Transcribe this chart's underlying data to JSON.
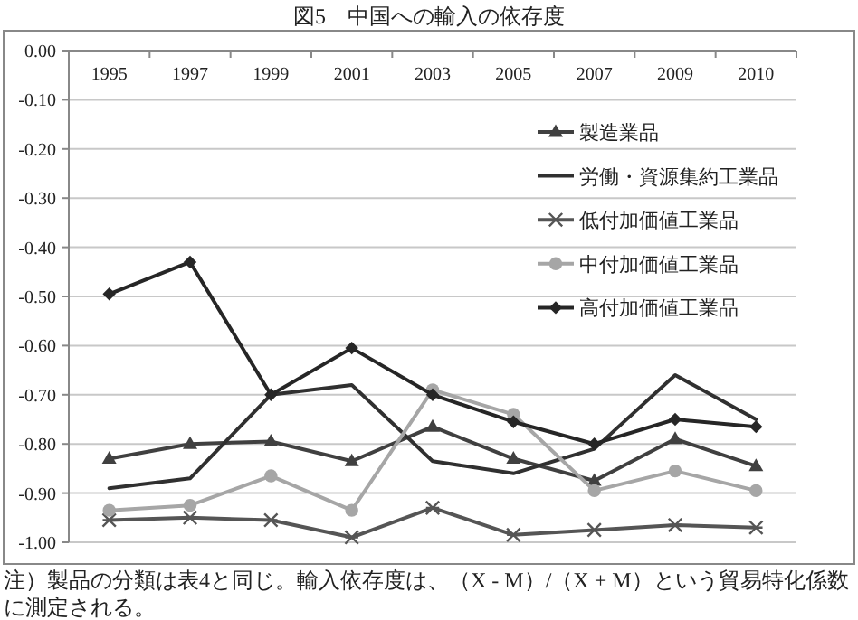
{
  "chart_data": {
    "type": "line",
    "title": "図5　中国への輸入の依存度",
    "categories": [
      "1995",
      "1997",
      "1999",
      "2001",
      "2003",
      "2005",
      "2007",
      "2009",
      "2010"
    ],
    "series": [
      {
        "name": "製造業品",
        "color": "#404040",
        "marker": "triangle",
        "values": [
          -0.83,
          -0.8,
          -0.795,
          -0.835,
          -0.765,
          -0.83,
          -0.875,
          -0.79,
          -0.845
        ]
      },
      {
        "name": "労働・資源集約工業品",
        "color": "#303030",
        "marker": "none",
        "values": [
          -0.89,
          -0.87,
          -0.7,
          -0.68,
          -0.835,
          -0.86,
          -0.81,
          -0.66,
          -0.75
        ]
      },
      {
        "name": "低付加価値工業品",
        "color": "#555555",
        "marker": "cross",
        "values": [
          -0.955,
          -0.95,
          -0.955,
          -0.99,
          -0.93,
          -0.985,
          -0.975,
          -0.965,
          -0.97
        ]
      },
      {
        "name": "中付加価値工業品",
        "color": "#a6a6a6",
        "marker": "circle",
        "values": [
          -0.935,
          -0.925,
          -0.865,
          -0.935,
          -0.69,
          -0.74,
          -0.895,
          -0.855,
          -0.895
        ]
      },
      {
        "name": "高付加価値工業品",
        "color": "#262626",
        "marker": "diamond",
        "values": [
          -0.495,
          -0.43,
          -0.7,
          -0.605,
          -0.7,
          -0.755,
          -0.8,
          -0.75,
          -0.765
        ]
      }
    ],
    "ylim": [
      -1.0,
      0.0
    ],
    "yticks": [
      {
        "value": 0,
        "label": "0.00"
      },
      {
        "value": -0.1,
        "label": "-0.10"
      },
      {
        "value": -0.2,
        "label": "-0.20"
      },
      {
        "value": -0.3,
        "label": "-0.30"
      },
      {
        "value": -0.4,
        "label": "-0.40"
      },
      {
        "value": -0.5,
        "label": "-0.50"
      },
      {
        "value": -0.6,
        "label": "-0.60"
      },
      {
        "value": -0.7,
        "label": "-0.70"
      },
      {
        "value": -0.8,
        "label": "-0.80"
      },
      {
        "value": -0.9,
        "label": "-0.90"
      },
      {
        "value": -1.0,
        "label": "-1.00"
      }
    ],
    "grid": "y",
    "legend": "top right",
    "line_style": "solid",
    "annotations": [
      "注）製品の分類は表4と同じ。輸入依存度は、（X - M）/（X + M）という貿易特化係数に測定される。"
    ]
  }
}
